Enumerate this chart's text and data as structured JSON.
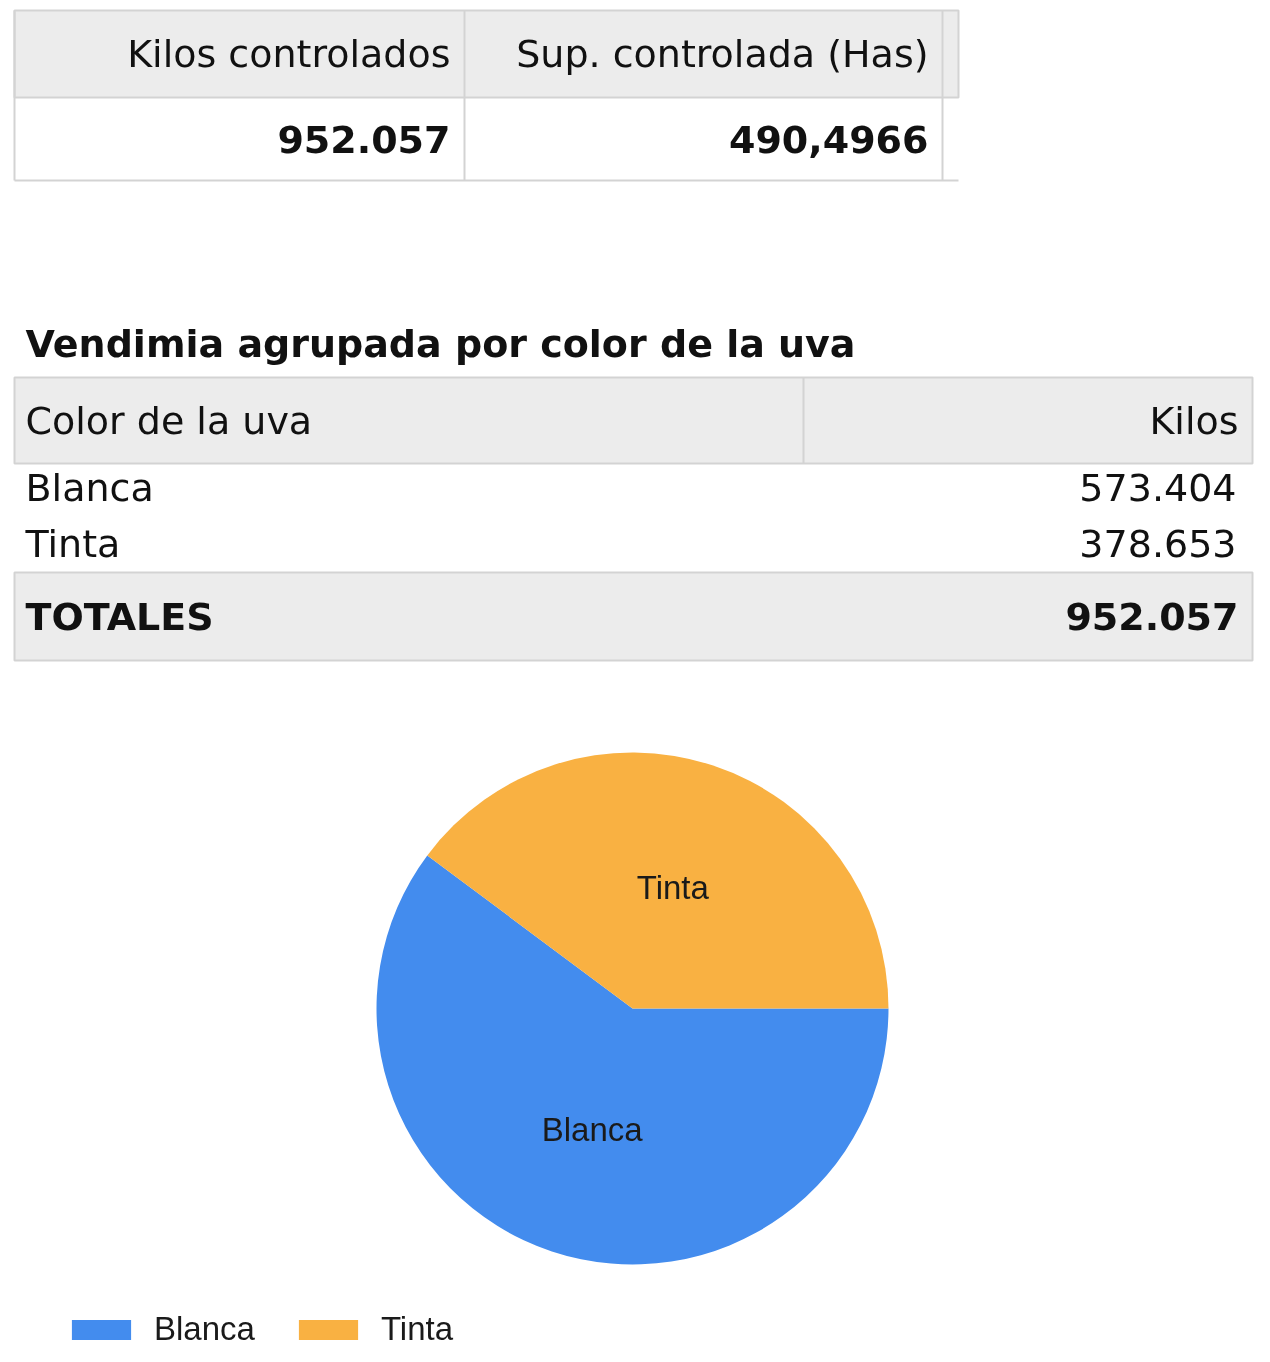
{
  "chart_data": [
    {
      "type": "other",
      "categories": [
        "Kilos controlados",
        "Sup. controlada (Has)"
      ],
      "value_labels": [
        "952.057",
        "490,4966"
      ]
    },
    {
      "type": "other",
      "title": "Vendimia agrupada por color de la uva",
      "xlabel": "Color de la uva",
      "ylabel": "Kilos",
      "categories": [
        "Blanca",
        "Tinta"
      ],
      "value_labels": [
        "573.404",
        "378.653"
      ],
      "annotations": [
        "TOTALES"
      ],
      "totals": [
        "952.057"
      ]
    },
    {
      "type": "pie",
      "categories": [
        "Blanca",
        "Tinta"
      ],
      "values": [
        60.2,
        39.8
      ],
      "colors": [
        "#438cee",
        "#f9b142"
      ],
      "legend": "bottom left"
    }
  ]
}
